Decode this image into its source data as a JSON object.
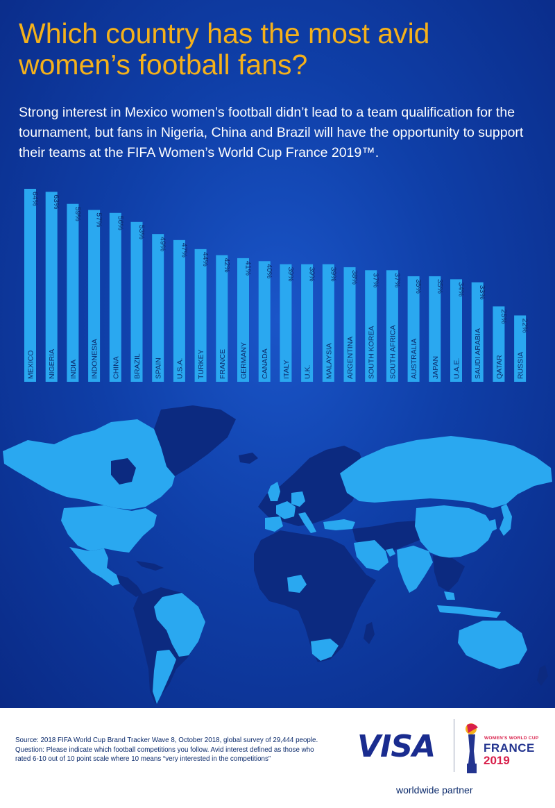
{
  "title": "Which country has the most avid women’s football fans?",
  "subtitle": "Strong interest in Mexico women’s football didn’t lead to a team qualification for the tournament, but fans in Nigeria, China and Brazil will have the opportunity to support their teams at the FIFA Women’s World Cup France 2019™.",
  "chart_data": {
    "type": "bar",
    "title": "Which country has the most avid women’s football fans?",
    "orientation": "vertical",
    "categories": [
      "MEXICO",
      "NIGERIA",
      "INDIA",
      "INDONESIA",
      "CHINA",
      "BRAZIL",
      "SPAIN",
      "U.S.A.",
      "TURKEY",
      "FRANCE",
      "GERMANY",
      "CANADA",
      "ITALY",
      "U.K.",
      "MALAYSIA",
      "ARGENTINA",
      "SOUTH KOREA",
      "SOUTH AFRICA",
      "AUSTRALIA",
      "JAPAN",
      "U.A.E.",
      "SAUDI ARABIA",
      "QATAR",
      "RUSSIA"
    ],
    "values": [
      64,
      63,
      59,
      57,
      56,
      53,
      49,
      47,
      44,
      42,
      41,
      40,
      39,
      39,
      39,
      38,
      37,
      37,
      35,
      35,
      34,
      33,
      25,
      22
    ],
    "value_labels": [
      "64%",
      "63%",
      "59%",
      "57%",
      "56%",
      "53%",
      "49%",
      "47%",
      "44%",
      "42%",
      "41%",
      "40%",
      "39%",
      "39%",
      "39%",
      "38%",
      "37%",
      "37%",
      "35%",
      "35%",
      "34%",
      "33%",
      "25%",
      "22%"
    ],
    "unit": "%",
    "bar_color": "#2aa8f0",
    "grid": false,
    "legend": "none"
  },
  "colors": {
    "title": "#f5b11a",
    "background": "#0f3fa8",
    "bar": "#2aa8f0",
    "map_highlight": "#2aa8f0",
    "map_other": "#0c2a80",
    "footer_text": "#0b2a6b",
    "visa": "#1a2c8f",
    "wwc_red": "#d81f4a"
  },
  "footer": {
    "source": "Source: 2018 FIFA World Cup Brand Tracker Wave 8, October 2018, global survey of 29,444 people. Question: Please indicate which football competitions you follow. Avid interest defined as those who rated 6-10 out of 10 point scale where 10 means “very interested in the competitions”",
    "visa": "VISA",
    "wwc_small": "WOMEN'S WORLD CUP",
    "wwc_country": "FRANCE",
    "wwc_year": "2019",
    "partner": "worldwide partner"
  }
}
